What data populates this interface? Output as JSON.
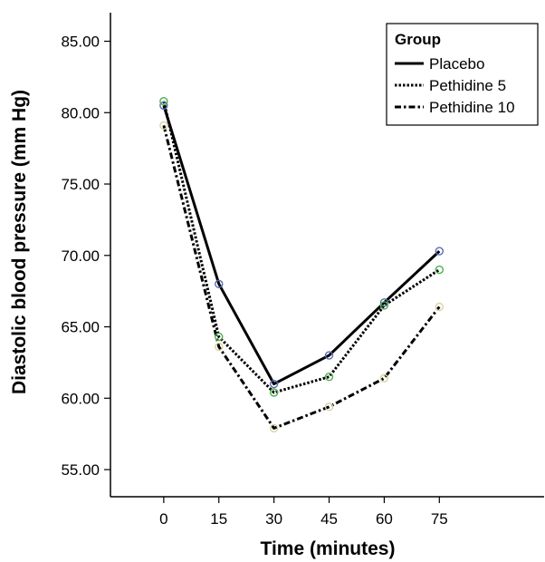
{
  "chart_data": {
    "type": "line",
    "title": "",
    "xlabel": "Time (minutes)",
    "ylabel": "Diastolic blood pressure (mm Hg)",
    "x": [
      0,
      15,
      30,
      45,
      60,
      75
    ],
    "x_tick_labels": [
      "0",
      "15",
      "30",
      "45",
      "60",
      "75"
    ],
    "y_tick_labels": [
      "55.00",
      "60.00",
      "65.00",
      "70.00",
      "75.00",
      "80.00",
      "85.00"
    ],
    "y_ticks": [
      55,
      60,
      65,
      70,
      75,
      80,
      85
    ],
    "ylim": [
      53.1,
      87.0
    ],
    "xlim": [
      -14.5,
      103.5
    ],
    "grid": false,
    "legend": {
      "title": "Group",
      "placement": "top-right"
    },
    "series": [
      {
        "name": "Placebo",
        "style": "solid",
        "marker_color": "#5b6bb5",
        "values": [
          80.5,
          68.0,
          61.0,
          63.0,
          66.7,
          70.3
        ]
      },
      {
        "name": "Pethidine 5",
        "style": "dotted",
        "marker_color": "#4cb04c",
        "values": [
          80.8,
          64.3,
          60.4,
          61.5,
          66.5,
          69.0
        ]
      },
      {
        "name": "Pethidine 10",
        "style": "dashdot",
        "marker_color": "#d9d4a6",
        "values": [
          79.1,
          63.6,
          57.9,
          59.4,
          61.4,
          66.4
        ]
      }
    ]
  }
}
